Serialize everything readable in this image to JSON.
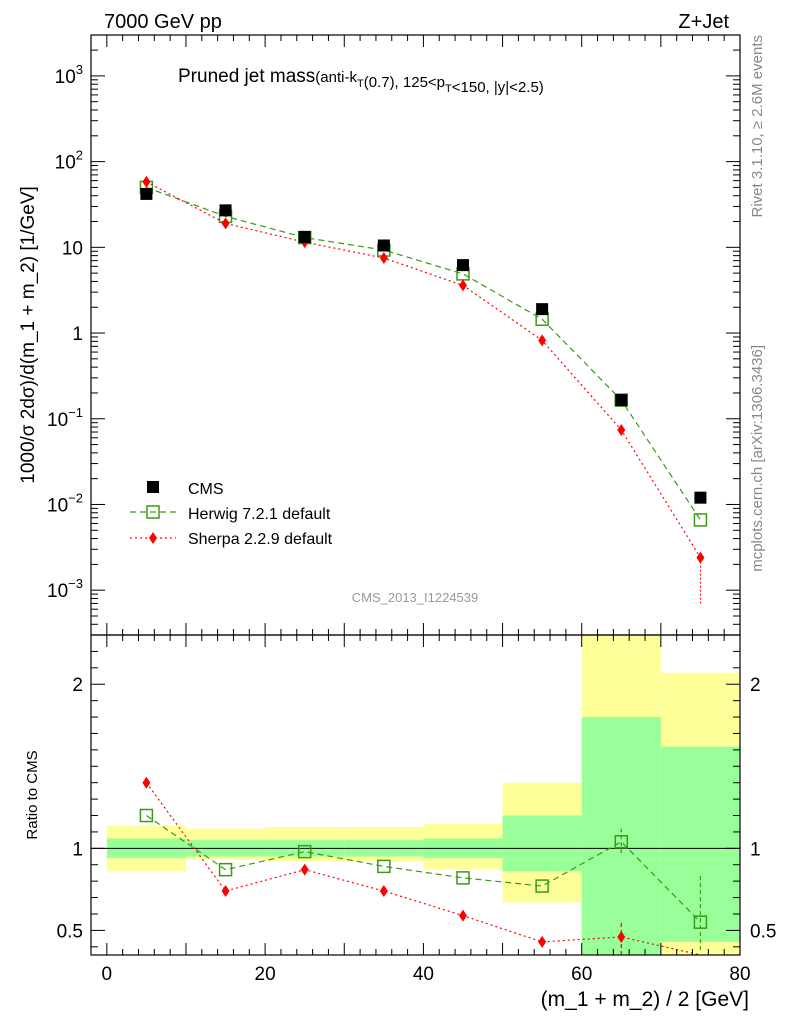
{
  "header": {
    "left": "7000 GeV pp",
    "right": "Z+Jet"
  },
  "side_labels": {
    "rivet": "Rivet 3.1.10, ≥ 2.6M events",
    "mcplots": "mcplots.cern.ch [arXiv:1306.3436]"
  },
  "watermark": "CMS_2013_I1224539",
  "chart_data": [
    {
      "type": "scatter",
      "panel": "main",
      "title": "Pruned jet mass",
      "title_sub": "(anti-k_T(0.7), 125<p_T<150, |y|<2.5)",
      "ylabel": "1000/σ 2dσ)/d(m_1 + m_2) [1/GeV]",
      "yscale": "log",
      "ylim": [
        0.0003,
        3000
      ],
      "xlim": [
        -2,
        80
      ],
      "x": [
        5,
        15,
        25,
        35,
        45,
        55,
        65,
        75
      ],
      "series": [
        {
          "name": "CMS",
          "color": "#000000",
          "marker": "filled-square",
          "values": [
            42,
            27,
            13.2,
            10.5,
            6.2,
            1.9,
            0.165,
            0.012
          ]
        },
        {
          "name": "Herwig 7.2.1 default",
          "color": "#3a9a16",
          "marker": "open-square",
          "line": "dashed",
          "values": [
            50,
            23,
            13,
            9.3,
            4.9,
            1.45,
            0.165,
            0.0066
          ]
        },
        {
          "name": "Sherpa 2.2.9 default",
          "color": "#ff0000",
          "marker": "filled-diamond",
          "line": "dotted",
          "values": [
            58,
            19,
            11.5,
            7.5,
            3.6,
            0.82,
            0.074,
            0.0024
          ]
        }
      ],
      "yticks": [
        {
          "value": 0.001,
          "mantissa": "10",
          "exp": "−3"
        },
        {
          "value": 0.01,
          "mantissa": "10",
          "exp": "−2"
        },
        {
          "value": 0.1,
          "mantissa": "10",
          "exp": "−1"
        },
        {
          "value": 1,
          "mantissa": "1",
          "exp": ""
        },
        {
          "value": 10,
          "mantissa": "10",
          "exp": ""
        },
        {
          "value": 100,
          "mantissa": "10",
          "exp": "2"
        },
        {
          "value": 1000,
          "mantissa": "10",
          "exp": "3"
        }
      ]
    },
    {
      "type": "line",
      "panel": "ratio",
      "ylabel": "Ratio to CMS",
      "xlabel": "(m_1 + m_2) / 2 [GeV]",
      "ylim": [
        0.35,
        2.3
      ],
      "xlim": [
        -2,
        80
      ],
      "xticks": [
        0,
        20,
        40,
        60,
        80
      ],
      "yticks": [
        0.5,
        1,
        2
      ],
      "reference_line": 1,
      "bands": [
        {
          "x": [
            0,
            10
          ],
          "inner": [
            0.94,
            1.06
          ],
          "outer": [
            0.86,
            1.14
          ]
        },
        {
          "x": [
            10,
            20
          ],
          "inner": [
            0.95,
            1.05
          ],
          "outer": [
            0.93,
            1.12
          ]
        },
        {
          "x": [
            20,
            30
          ],
          "inner": [
            0.95,
            1.05
          ],
          "outer": [
            0.92,
            1.13
          ]
        },
        {
          "x": [
            30,
            40
          ],
          "inner": [
            0.95,
            1.05
          ],
          "outer": [
            0.92,
            1.13
          ]
        },
        {
          "x": [
            40,
            50
          ],
          "inner": [
            0.94,
            1.06
          ],
          "outer": [
            0.87,
            1.15
          ]
        },
        {
          "x": [
            50,
            60
          ],
          "inner": [
            0.86,
            1.2
          ],
          "outer": [
            0.67,
            1.4
          ]
        },
        {
          "x": [
            60,
            70
          ],
          "inner": [
            0.2,
            1.8
          ],
          "outer": [
            0.2,
            2.4
          ]
        },
        {
          "x": [
            70,
            80
          ],
          "inner": [
            0.43,
            1.62
          ],
          "outer": [
            0.2,
            2.07
          ]
        }
      ],
      "series": [
        {
          "name": "Herwig 7.2.1 default",
          "color": "#3a9a16",
          "marker": "open-square",
          "line": "dashed",
          "values": [
            1.2,
            0.87,
            0.98,
            0.89,
            0.82,
            0.77,
            1.04,
            0.55
          ],
          "errors": [
            null,
            null,
            null,
            null,
            null,
            null,
            [
              0.97,
              1.12
            ],
            [
              0.38,
              0.85
            ]
          ]
        },
        {
          "name": "Sherpa 2.2.9 default",
          "color": "#ff0000",
          "marker": "filled-diamond",
          "line": "dotted",
          "values": [
            1.4,
            0.74,
            0.87,
            0.74,
            0.59,
            0.43,
            0.46,
            0.2
          ],
          "errors": [
            null,
            null,
            null,
            null,
            null,
            null,
            [
              0.3,
              0.55
            ],
            null
          ]
        }
      ],
      "band_colors": {
        "inner": "#99ff99",
        "outer": "#ffff99"
      }
    }
  ]
}
